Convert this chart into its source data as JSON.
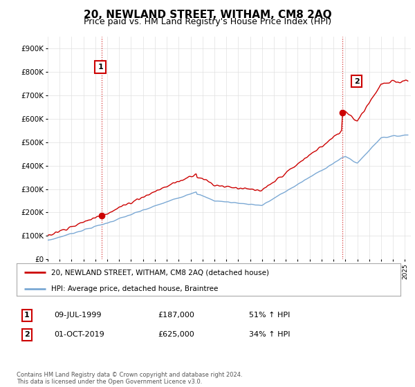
{
  "title": "20, NEWLAND STREET, WITHAM, CM8 2AQ",
  "subtitle": "Price paid vs. HM Land Registry's House Price Index (HPI)",
  "title_fontsize": 11,
  "subtitle_fontsize": 9,
  "ylim": [
    0,
    950000
  ],
  "yticks": [
    0,
    100000,
    200000,
    300000,
    400000,
    500000,
    600000,
    700000,
    800000,
    900000
  ],
  "ytick_labels": [
    "£0",
    "£100K",
    "£200K",
    "£300K",
    "£400K",
    "£500K",
    "£600K",
    "£700K",
    "£800K",
    "£900K"
  ],
  "xlim_start": 1995.0,
  "xlim_end": 2025.5,
  "xtick_years": [
    1995,
    1996,
    1997,
    1998,
    1999,
    2000,
    2001,
    2002,
    2003,
    2004,
    2005,
    2006,
    2007,
    2008,
    2009,
    2010,
    2011,
    2012,
    2013,
    2014,
    2015,
    2016,
    2017,
    2018,
    2019,
    2020,
    2021,
    2022,
    2023,
    2024,
    2025
  ],
  "hpi_color": "#7aa8d4",
  "price_color": "#cc0000",
  "vline_color": "#cc0000",
  "vline_style": ":",
  "transaction1_x": 1999.52,
  "transaction1_y": 187000,
  "transaction1_label": "1",
  "transaction2_x": 2019.75,
  "transaction2_y": 625000,
  "transaction2_label": "2",
  "marker_size": 6,
  "legend_line1": "20, NEWLAND STREET, WITHAM, CM8 2AQ (detached house)",
  "legend_line2": "HPI: Average price, detached house, Braintree",
  "table_row1": [
    "1",
    "09-JUL-1999",
    "£187,000",
    "51% ↑ HPI"
  ],
  "table_row2": [
    "2",
    "01-OCT-2019",
    "£625,000",
    "34% ↑ HPI"
  ],
  "footer": "Contains HM Land Registry data © Crown copyright and database right 2024.\nThis data is licensed under the Open Government Licence v3.0.",
  "background_color": "#ffffff",
  "grid_color": "#e0e0e0"
}
